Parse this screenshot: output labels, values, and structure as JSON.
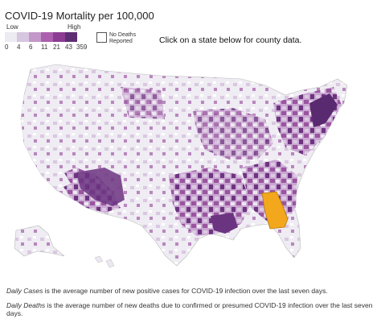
{
  "title": "COVID-19 Mortality per 100,000",
  "legend": {
    "low_label": "Low",
    "high_label": "High",
    "ticks": [
      "0",
      "4",
      "6",
      "11",
      "21",
      "43",
      "359"
    ],
    "colors": [
      "#ecebf2",
      "#d6c6df",
      "#c397c9",
      "#ab5fae",
      "#8c3c93",
      "#5e2e73"
    ],
    "no_deaths_label": "No Deaths Reported"
  },
  "instruction": "Click on a state below for county data.",
  "highlight": {
    "state": "Georgia",
    "color": "#f2a71d"
  },
  "notes": {
    "cases_term": "Daily Cases",
    "cases_text": " is the average number of new positive cases for COVID-19 infection over the last seven days.",
    "deaths_term": "Daily Deaths",
    "deaths_text": " is the average number of new deaths due to confirmed or presumed COVID-19 infection over the last seven days."
  }
}
